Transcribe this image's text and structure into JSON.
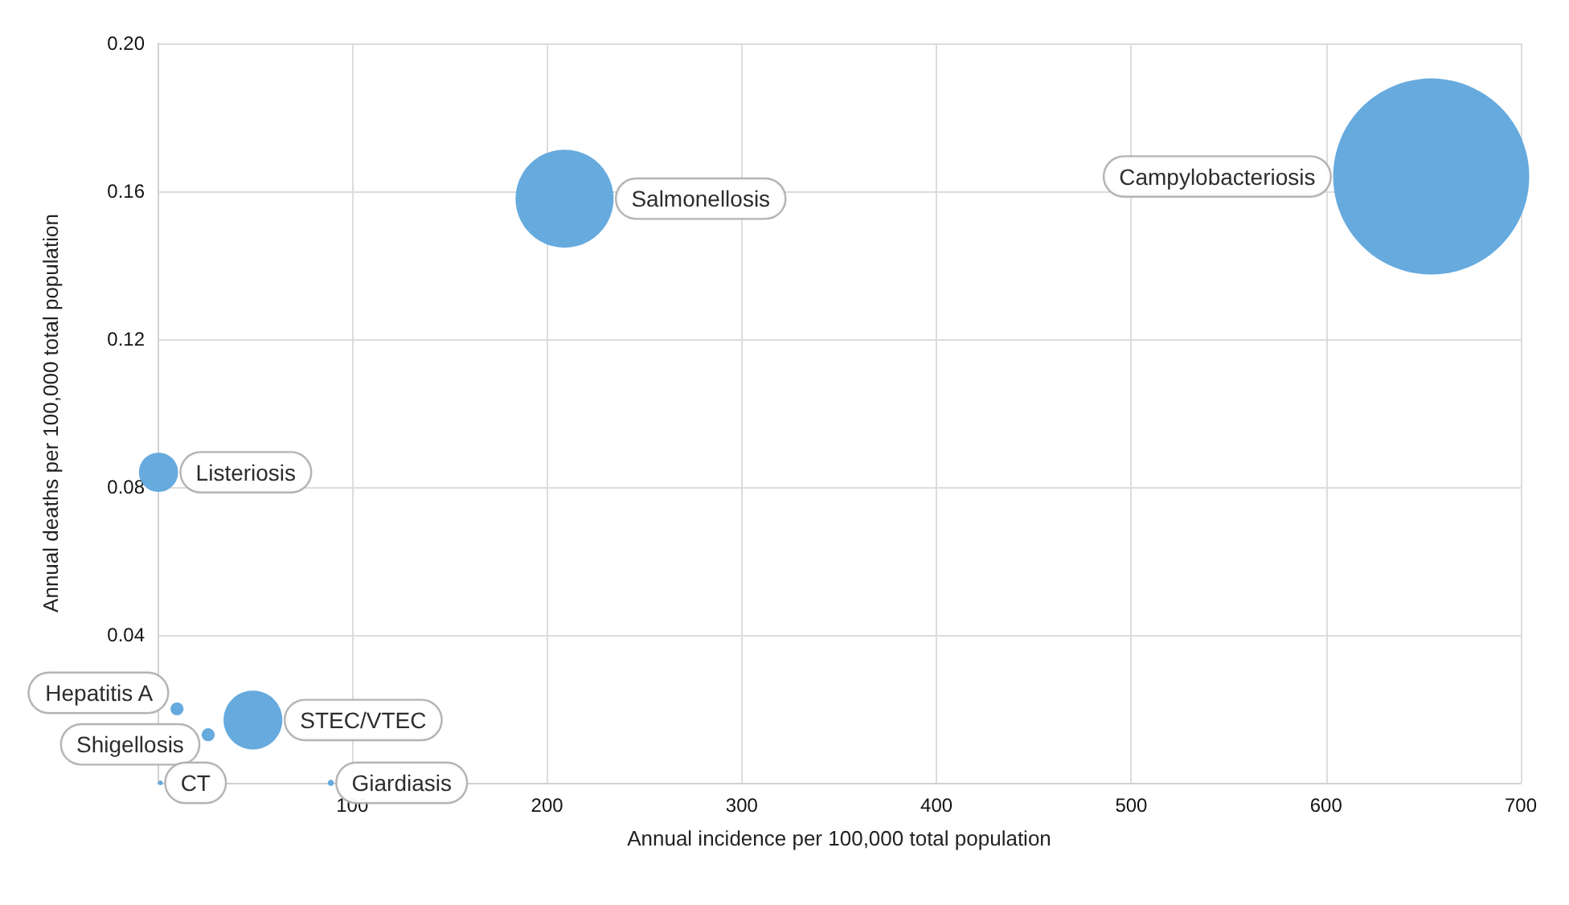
{
  "chart_data": {
    "type": "bubble",
    "xlabel": "Annual incidence per 100,000 total population",
    "ylabel": "Annual deaths per 100,000 total population",
    "series": [
      {
        "name": "Campylobacteriosis",
        "color": "#5ea5dc",
        "x": [
          654
        ],
        "values": [
          0.164
        ],
        "sizes": [
          1
        ]
      },
      {
        "name": "Salmonellosis",
        "color": "#5ea5dc",
        "x": [
          209
        ],
        "values": [
          0.158
        ],
        "sizes": [
          0.25
        ]
      },
      {
        "name": "Listeriosis",
        "color": "#5ea5dc",
        "x": [
          0.5
        ],
        "values": [
          0.084
        ],
        "sizes": [
          0.04
        ]
      },
      {
        "name": "Hepatitis A",
        "color": "#5ea5dc",
        "x": [
          10
        ],
        "values": [
          0.02
        ],
        "sizes": [
          0.0044
        ]
      },
      {
        "name": "STEC/VTEC",
        "color": "#5ea5dc",
        "x": [
          49
        ],
        "values": [
          0.017
        ],
        "sizes": [
          0.09
        ]
      },
      {
        "name": "Shigellosis",
        "color": "#5ea5dc",
        "x": [
          26
        ],
        "values": [
          0.013
        ],
        "sizes": [
          0.0044
        ]
      },
      {
        "name": "CT",
        "color": "#5ea5dc",
        "x": [
          1.5
        ],
        "values": [
          0
        ],
        "sizes": [
          0.0006
        ]
      },
      {
        "name": "Giardiasis",
        "color": "#5ea5dc",
        "x": [
          89
        ],
        "values": [
          0
        ],
        "sizes": [
          0.001
        ]
      }
    ],
    "xlim": [
      0,
      700
    ],
    "xticks": [
      100,
      200,
      300,
      400,
      500,
      600,
      700
    ],
    "ylim": [
      0,
      0.2
    ],
    "yticks": [
      0.04,
      0.08,
      0.12,
      0.16,
      {
        "value": 0.2,
        "label": "0.20"
      }
    ],
    "grid": true,
    "legend": false,
    "marker": "circle"
  }
}
